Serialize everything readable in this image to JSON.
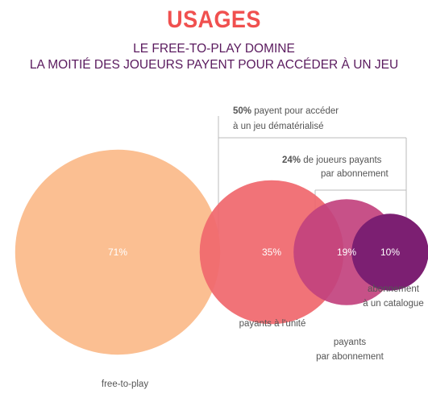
{
  "header": {
    "title": "USAGES",
    "subtitle_line1": "LE FREE-TO-PLAY DOMINE",
    "subtitle_line2": "LA MOITIÉ DES JOUEURS PAYENT POUR ACCÉDER À UN JEU"
  },
  "colors": {
    "title": "#f0504f",
    "subtitle": "#5a1a5e",
    "free_to_play": "#fbbf92",
    "unite": "#f0686e",
    "abonnement": "#c2427e",
    "catalogue": "#7c1f72",
    "bracket": "#bbbbbb"
  },
  "annotations": {
    "a50_bold": "50%",
    "a50_rest": " payent pour accéder",
    "a50_line2": "à un jeu dématérialisé",
    "a24_bold": "24%",
    "a24_rest": " de joueurs payants",
    "a24_line2": "par abonnement"
  },
  "chart_data": {
    "type": "bubble",
    "title": "USAGES",
    "subtitle": "LE FREE-TO-PLAY DOMINE / LA MOITIÉ DES JOUEURS PAYENT POUR ACCÉDER À UN JEU",
    "categories": [
      "free-to-play",
      "payants à l'unité",
      "payants par abonnement",
      "abonnement à un catalogue"
    ],
    "values": [
      71,
      35,
      19,
      10
    ],
    "value_labels": [
      "71%",
      "35%",
      "19%",
      "10%"
    ],
    "category_labels": [
      [
        "free-to-play"
      ],
      [
        "payants à l'unité"
      ],
      [
        "payants",
        "par abonnement"
      ],
      [
        "abonnement",
        "à un catalogue"
      ]
    ],
    "brackets": [
      {
        "value": 50,
        "label": "50% payent pour accéder à un jeu dématérialisé",
        "covers": [
          "payants à l'unité",
          "payants par abonnement",
          "abonnement à un catalogue"
        ]
      },
      {
        "value": 24,
        "label": "24% de joueurs payants par abonnement",
        "covers": [
          "payants par abonnement",
          "abonnement à un catalogue"
        ]
      }
    ]
  }
}
